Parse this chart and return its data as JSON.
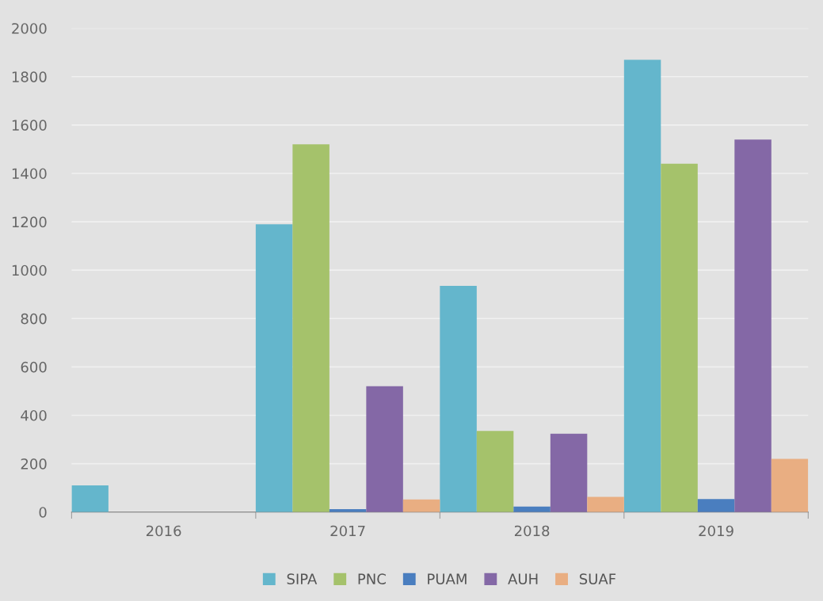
{
  "chart_data": {
    "type": "bar",
    "categories": [
      "2016",
      "2017",
      "2018",
      "2019"
    ],
    "series": [
      {
        "name": "SIPA",
        "color": "#64b6cc",
        "values": [
          110,
          1190,
          935,
          1870
        ]
      },
      {
        "name": "PNC",
        "color": "#a5c26b",
        "values": [
          0,
          1520,
          335,
          1440
        ]
      },
      {
        "name": "PUAM",
        "color": "#4a7ebf",
        "values": [
          0,
          12,
          23,
          54
        ]
      },
      {
        "name": "AUH",
        "color": "#8468a6",
        "values": [
          0,
          520,
          324,
          1540
        ]
      },
      {
        "name": "SUAF",
        "color": "#e9ae82",
        "values": [
          0,
          52,
          63,
          220
        ]
      }
    ],
    "ylim": [
      0,
      2000
    ],
    "yticks": [
      0,
      200,
      400,
      600,
      800,
      1000,
      1200,
      1400,
      1600,
      1800,
      2000
    ],
    "grid": "y",
    "legend": "bottom"
  }
}
